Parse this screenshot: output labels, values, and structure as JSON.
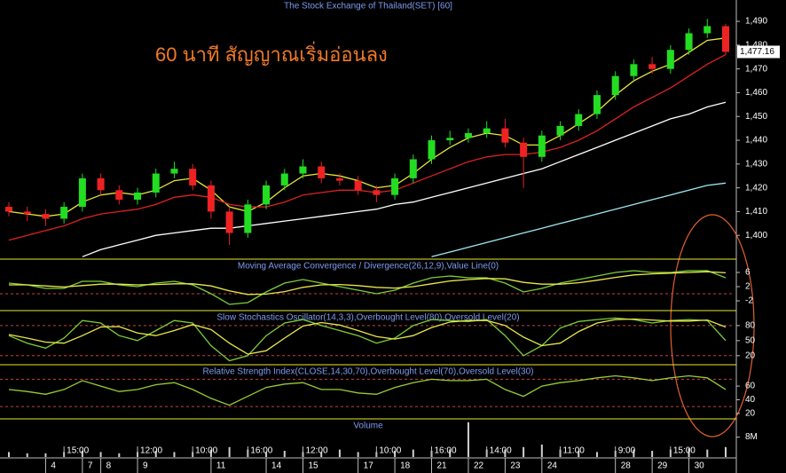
{
  "chart_data": [
    {
      "type": "candlestick",
      "title": "The Stock Exchange of Thailand(SET) [60]",
      "annotation": "60 นาที สัญญาณเริ่มอ่อนลง",
      "open": [
        1412,
        1410,
        1409,
        1407,
        1412,
        1424,
        1419,
        1415,
        1418,
        1426,
        1428,
        1421,
        1410,
        1401,
        1413,
        1421,
        1426,
        1429,
        1424,
        1423,
        1419,
        1417,
        1424,
        1432,
        1440,
        1441,
        1443,
        1445,
        1439,
        1433,
        1442,
        1446,
        1451,
        1459,
        1467,
        1472,
        1470,
        1478,
        1485,
        1488
      ],
      "high": [
        1414,
        1412,
        1411,
        1414,
        1426,
        1426,
        1421,
        1420,
        1428,
        1431,
        1430,
        1423,
        1412,
        1415,
        1423,
        1428,
        1432,
        1431,
        1426,
        1425,
        1421,
        1426,
        1434,
        1442,
        1444,
        1445,
        1448,
        1449,
        1441,
        1444,
        1448,
        1453,
        1461,
        1469,
        1474,
        1475,
        1480,
        1487,
        1491,
        1489
      ],
      "low": [
        1408,
        1406,
        1404,
        1405,
        1410,
        1417,
        1413,
        1413,
        1416,
        1424,
        1419,
        1407,
        1396,
        1399,
        1411,
        1419,
        1424,
        1422,
        1421,
        1417,
        1414,
        1415,
        1422,
        1430,
        1438,
        1439,
        1441,
        1437,
        1420,
        1431,
        1440,
        1444,
        1449,
        1457,
        1465,
        1468,
        1468,
        1476,
        1483,
        1476
      ],
      "close": [
        1410,
        1409,
        1407,
        1412,
        1424,
        1419,
        1415,
        1418,
        1426,
        1428,
        1421,
        1410,
        1401,
        1413,
        1421,
        1426,
        1429,
        1424,
        1423,
        1419,
        1417,
        1424,
        1432,
        1440,
        1441,
        1443,
        1445,
        1439,
        1433,
        1442,
        1446,
        1451,
        1459,
        1467,
        1472,
        1470,
        1478,
        1485,
        1488,
        1477.16
      ],
      "up_color": "#22dd22",
      "down_color": "#ee2222",
      "overlays": [
        {
          "color": "#e8e83a",
          "values": [
            1410,
            1409,
            1408,
            1409,
            1414,
            1417,
            1418,
            1417,
            1419,
            1423,
            1424,
            1419,
            1412,
            1410,
            1414,
            1420,
            1425,
            1426,
            1425,
            1423,
            1420,
            1421,
            1426,
            1432,
            1437,
            1441,
            1443,
            1442,
            1438,
            1438,
            1442,
            1447,
            1452,
            1459,
            1465,
            1469,
            1472,
            1477,
            1482,
            1483
          ]
        },
        {
          "color": "#dd2222",
          "values": [
            1398,
            1400,
            1402,
            1404,
            1407,
            1409,
            1410,
            1411,
            1413,
            1416,
            1417,
            1416,
            1413,
            1412,
            1412,
            1414,
            1417,
            1418,
            1419,
            1419,
            1418,
            1419,
            1422,
            1425,
            1428,
            1431,
            1433,
            1434,
            1434,
            1435,
            1437,
            1440,
            1444,
            1449,
            1454,
            1458,
            1462,
            1467,
            1472,
            1476
          ]
        },
        {
          "color": "#ffffff",
          "values": [
            null,
            null,
            null,
            null,
            1391,
            1394,
            1396,
            1398,
            1400,
            1401,
            1402,
            1403,
            1403,
            1404,
            1405,
            1406,
            1407,
            1408,
            1409,
            1410,
            1411,
            1413,
            1414,
            1416,
            1418,
            1420,
            1422,
            1424,
            1426,
            1428,
            1431,
            1434,
            1437,
            1440,
            1443,
            1446,
            1449,
            1451,
            1454,
            1456
          ]
        },
        {
          "color": "#9fe8f0",
          "values": [
            null,
            null,
            null,
            null,
            null,
            null,
            null,
            null,
            null,
            null,
            null,
            null,
            null,
            null,
            null,
            null,
            null,
            null,
            null,
            null,
            null,
            null,
            null,
            1391,
            1393,
            1395,
            1397,
            1399,
            1401,
            1403,
            1405,
            1407,
            1409,
            1411,
            1413,
            1415,
            1417,
            1419,
            1421,
            1422
          ]
        }
      ],
      "last_label": "1,477.16",
      "ylim": [
        1390,
        1496
      ],
      "yticks": [
        {
          "value": 1400,
          "label": "1,400"
        },
        {
          "value": 1410,
          "label": "1,410"
        },
        {
          "value": 1420,
          "label": "1,420"
        },
        {
          "value": 1430,
          "label": "1,430"
        },
        {
          "value": 1440,
          "label": "1,440"
        },
        {
          "value": 1450,
          "label": "1,450"
        },
        {
          "value": 1460,
          "label": "1,460"
        },
        {
          "value": 1470,
          "label": "1,470"
        },
        {
          "value": 1480,
          "label": "1,480"
        },
        {
          "value": 1490,
          "label": "1,490"
        }
      ]
    },
    {
      "type": "line",
      "title": "Moving Average Convergence / Divergence(26,12,9),Value Line(0)",
      "series": [
        {
          "color": "#7ccf3a",
          "values": [
            3,
            2.5,
            1.5,
            1.5,
            3.5,
            3.5,
            2.5,
            2,
            3,
            3.5,
            2.5,
            0,
            -3,
            -2.5,
            0.5,
            3,
            4,
            3,
            2,
            1,
            0,
            1,
            3,
            4.5,
            5,
            4.5,
            4.5,
            3,
            0.5,
            1.5,
            3,
            4,
            5,
            6,
            6.5,
            6,
            6,
            6.5,
            6.5,
            4.5
          ]
        },
        {
          "color": "#e8e84a",
          "values": [
            2.5,
            2.5,
            2.2,
            1.9,
            2.3,
            2.7,
            2.7,
            2.5,
            2.6,
            2.8,
            2.8,
            2.2,
            0.8,
            -0.2,
            -0.1,
            0.6,
            1.8,
            2.5,
            2.6,
            2.3,
            1.8,
            1.6,
            2,
            2.8,
            3.6,
            4,
            4.3,
            4.2,
            3.2,
            2.7,
            2.7,
            3.1,
            3.8,
            4.6,
            5.3,
            5.6,
            5.8,
            6,
            6.2,
            5.9
          ]
        }
      ],
      "levels": [
        0
      ],
      "level_color": "#c84040",
      "ylim": [
        -4.75,
        9.5
      ],
      "yticks": [
        -2,
        2,
        6
      ]
    },
    {
      "type": "line",
      "title": "Slow Stochastics Oscillator(14,3,3),Overbought Level(80),Oversold Level(20)",
      "series": [
        {
          "color": "#7ccf3a",
          "values": [
            60,
            45,
            35,
            55,
            90,
            85,
            60,
            50,
            70,
            90,
            85,
            40,
            10,
            20,
            60,
            85,
            92,
            80,
            70,
            60,
            45,
            55,
            80,
            92,
            90,
            88,
            92,
            60,
            20,
            40,
            75,
            88,
            92,
            95,
            92,
            85,
            90,
            92,
            90,
            50
          ]
        },
        {
          "color": "#e8e84a",
          "values": [
            62,
            55,
            47,
            45,
            60,
            77,
            78,
            65,
            60,
            70,
            82,
            72,
            45,
            23,
            30,
            55,
            79,
            86,
            81,
            70,
            58,
            53,
            60,
            76,
            87,
            90,
            90,
            80,
            57,
            40,
            45,
            68,
            85,
            92,
            93,
            91,
            89,
            89,
            91,
            77
          ]
        }
      ],
      "levels": [
        80,
        20
      ],
      "level_color": "#c84040",
      "ylim": [
        2,
        108
      ],
      "yticks": [
        20,
        50,
        80
      ]
    },
    {
      "type": "line",
      "title": "Relative Strength Index(CLOSE,14,30,70),Overbought Level(70),Oversold Level(30)",
      "series": [
        {
          "color": "#9acd32",
          "values": [
            55,
            52,
            48,
            55,
            68,
            60,
            52,
            55,
            62,
            65,
            55,
            42,
            32,
            45,
            58,
            63,
            65,
            55,
            55,
            50,
            48,
            58,
            65,
            70,
            68,
            68,
            70,
            55,
            45,
            60,
            65,
            68,
            72,
            75,
            72,
            68,
            72,
            75,
            72,
            55
          ]
        }
      ],
      "levels": [
        70,
        30
      ],
      "level_color": "#c84040",
      "ylim": [
        12,
        90
      ],
      "yticks": [
        20,
        40,
        60
      ]
    },
    {
      "type": "bar",
      "title": "Volume",
      "color": "#cfcfcf",
      "values": [
        2,
        1.5,
        1.5,
        2,
        2.5,
        2,
        1.5,
        2,
        2.5,
        2,
        2,
        3,
        4,
        3,
        2,
        2.5,
        2,
        2,
        3,
        2,
        2,
        2.5,
        3,
        2.5,
        3,
        14,
        3,
        3,
        4,
        5,
        3,
        2.5,
        2,
        2.5,
        3,
        2.5,
        3,
        3.5,
        3,
        4
      ],
      "ylim": [
        0,
        15
      ],
      "yticks": [
        {
          "value": 8,
          "label": "8M"
        }
      ],
      "categories": [
        null,
        null,
        null,
        "15:00",
        null,
        null,
        null,
        "12:00",
        null,
        null,
        "10:00",
        null,
        null,
        "16:00",
        null,
        null,
        "12:00",
        null,
        null,
        null,
        "10:00",
        null,
        null,
        "16:00",
        null,
        null,
        "14:00",
        null,
        null,
        null,
        "11:00",
        null,
        null,
        "9:00",
        null,
        null,
        "15:00",
        null,
        null,
        null
      ],
      "day_labels": [
        null,
        null,
        "4",
        null,
        "7",
        "8",
        null,
        "9",
        null,
        null,
        null,
        "11",
        null,
        null,
        "14",
        null,
        "15",
        null,
        null,
        "17",
        null,
        "18",
        null,
        "21",
        null,
        "22",
        null,
        "23",
        null,
        "24",
        null,
        null,
        null,
        "28",
        null,
        "29",
        null,
        "30",
        null,
        null
      ]
    }
  ]
}
